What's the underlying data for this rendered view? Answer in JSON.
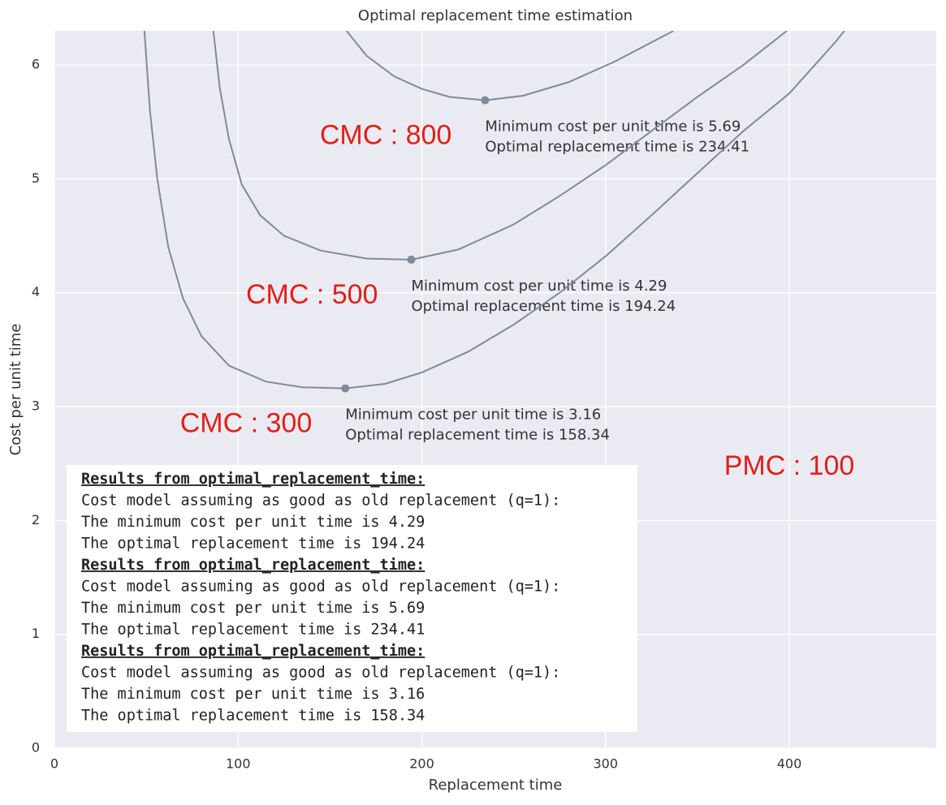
{
  "chart_data": {
    "type": "line",
    "title": "Optimal replacement time estimation",
    "x_label": "Replacement time",
    "y_label": "Cost per unit time",
    "xlim": [
      0,
      480
    ],
    "ylim": [
      0,
      6.3
    ],
    "xticks": [
      0,
      100,
      200,
      300,
      400
    ],
    "yticks": [
      0,
      1,
      2,
      3,
      4,
      5,
      6
    ],
    "grid": true,
    "background": "#eaeaf2",
    "series": [
      {
        "label": "CMC : 800",
        "color": "#7f8b99",
        "x": [
          159,
          170,
          185,
          200,
          215,
          234.41,
          255,
          280,
          305,
          337
        ],
        "values": [
          6.3,
          6.08,
          5.9,
          5.79,
          5.72,
          5.69,
          5.73,
          5.85,
          6.03,
          6.3
        ],
        "min_x": 234.41,
        "min_y": 5.69,
        "annotation": [
          "Minimum cost per unit time is 5.69",
          "Optimal replacement time is 234.41"
        ]
      },
      {
        "label": "CMC : 500",
        "color": "#7f8b99",
        "x": [
          86.5,
          90,
          95,
          102,
          112,
          125,
          145,
          170,
          194.24,
          220,
          250,
          275,
          300,
          325,
          350,
          375,
          398.7
        ],
        "values": [
          6.3,
          5.8,
          5.35,
          4.95,
          4.68,
          4.5,
          4.37,
          4.3,
          4.29,
          4.38,
          4.6,
          4.85,
          5.12,
          5.42,
          5.72,
          6.0,
          6.3
        ],
        "min_x": 194.24,
        "min_y": 4.29,
        "annotation": [
          "Minimum cost per unit time is 4.29",
          "Optimal replacement time is 194.24"
        ]
      },
      {
        "label": "CMC : 300",
        "color": "#7f8b99",
        "x": [
          49,
          52,
          56,
          62,
          70,
          80,
          95,
          115,
          135,
          158.34,
          180,
          200,
          225,
          250,
          275,
          300,
          325,
          350,
          375,
          400,
          425,
          430
        ],
        "values": [
          6.3,
          5.6,
          5.0,
          4.4,
          3.95,
          3.62,
          3.36,
          3.22,
          3.17,
          3.16,
          3.2,
          3.3,
          3.48,
          3.72,
          4.0,
          4.32,
          4.68,
          5.05,
          5.42,
          5.75,
          6.2,
          6.3
        ],
        "min_x": 158.34,
        "min_y": 3.16,
        "annotation": [
          "Minimum cost per unit time is 3.16",
          "Optimal replacement time is 158.34"
        ]
      }
    ],
    "note": "PMC : 100",
    "console_output": [
      {
        "heading": "Results from optimal_replacement_time:",
        "lines": [
          "Cost model assuming as good as old replacement (q=1):",
          "The minimum cost per unit time is 4.29",
          "The optimal replacement time is 194.24"
        ]
      },
      {
        "heading": "Results from optimal_replacement_time:",
        "lines": [
          "Cost model assuming as good as old replacement (q=1):",
          "The minimum cost per unit time is 5.69",
          "The optimal replacement time is 234.41"
        ]
      },
      {
        "heading": "Results from optimal_replacement_time:",
        "lines": [
          "Cost model assuming as good as old replacement (q=1):",
          "The minimum cost per unit time is 3.16",
          "The optimal replacement time is 158.34"
        ]
      }
    ]
  }
}
